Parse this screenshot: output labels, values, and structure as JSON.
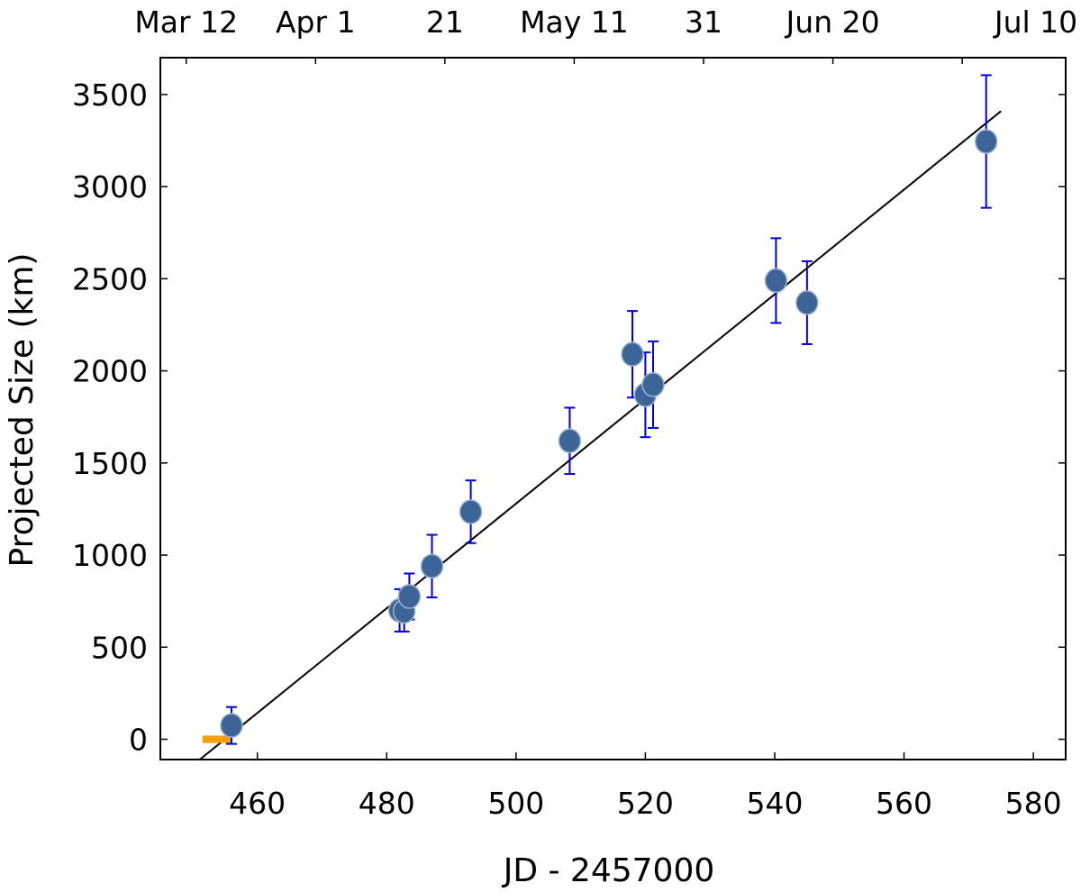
{
  "chart_data": {
    "type": "scatter",
    "title": "",
    "xlabel": "JD - 2457000",
    "ylabel": "Projected Size (km)",
    "xlim": [
      445,
      585
    ],
    "ylim": [
      -110,
      3700
    ],
    "grid": false,
    "x_ticks": [
      460,
      480,
      500,
      520,
      540,
      560,
      580
    ],
    "y_ticks": [
      0,
      500,
      1000,
      1500,
      2000,
      2500,
      3000,
      3500
    ],
    "top_axis": {
      "ticks": [
        {
          "x": 449,
          "label": "Mar 12"
        },
        {
          "x": 469,
          "label": "Apr 1"
        },
        {
          "x": 489,
          "label": "21"
        },
        {
          "x": 509,
          "label": "May 11"
        },
        {
          "x": 529,
          "label": "31"
        },
        {
          "x": 549,
          "label": "Jun 20"
        },
        {
          "x": 569,
          "label": "Jul 10"
        }
      ]
    },
    "points": [
      {
        "x": 456,
        "y": 75,
        "err": 100
      },
      {
        "x": 482,
        "y": 700,
        "err": 115
      },
      {
        "x": 482.7,
        "y": 695,
        "err": 110
      },
      {
        "x": 483.5,
        "y": 775,
        "err": 125
      },
      {
        "x": 487,
        "y": 940,
        "err": 170
      },
      {
        "x": 493,
        "y": 1235,
        "err": 170
      },
      {
        "x": 508.3,
        "y": 1620,
        "err": 180
      },
      {
        "x": 518,
        "y": 2090,
        "err": 235
      },
      {
        "x": 520,
        "y": 1870,
        "err": 230
      },
      {
        "x": 521.2,
        "y": 1925,
        "err": 235
      },
      {
        "x": 540.2,
        "y": 2490,
        "err": 230
      },
      {
        "x": 545,
        "y": 2370,
        "err": 225
      },
      {
        "x": 572.7,
        "y": 3245,
        "err": 360
      }
    ],
    "fit_line": {
      "x": [
        451.1,
        575
      ],
      "y": [
        -110,
        3410
      ]
    },
    "highlight_range": {
      "x": [
        451.5,
        456
      ],
      "y": [
        -20,
        20
      ],
      "color": "#f5a000"
    },
    "colors": {
      "marker": "#3c6497",
      "errorbar": "#0000dd",
      "fit": "#000000"
    }
  }
}
